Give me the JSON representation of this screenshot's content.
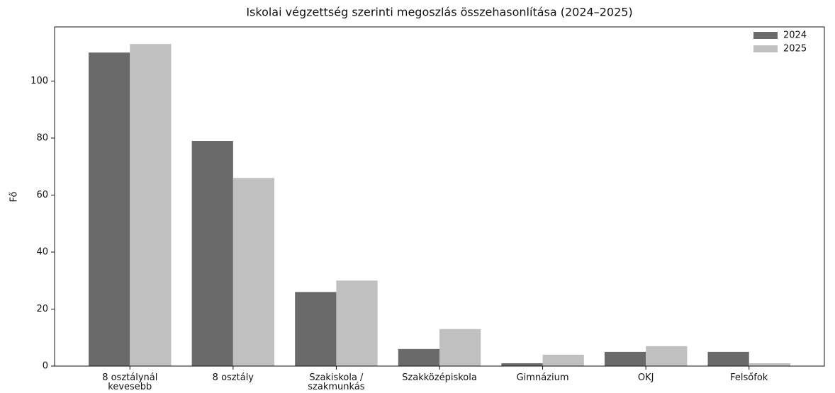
{
  "chart_data": {
    "type": "bar",
    "title": "Iskolai végzettség szerinti megoszlás összehasonlítása (2024–2025)",
    "y_label": "Fő",
    "categories": [
      "8 osztálynál\nkevesebb",
      "8 osztály",
      "Szakiskola /\nszakmunkás",
      "Szakközépiskola",
      "Gimnázium",
      "OKJ",
      "Felsőfok"
    ],
    "series": [
      {
        "name": "2024",
        "color": "#6a6a6a",
        "values": [
          110,
          79,
          26,
          6,
          1,
          5,
          5
        ]
      },
      {
        "name": "2025",
        "color": "#c0c0c0",
        "values": [
          113,
          66,
          30,
          13,
          4,
          7,
          1
        ]
      }
    ],
    "ylim": [
      0,
      119
    ],
    "yticks": [
      0,
      20,
      40,
      60,
      80,
      100
    ],
    "grid": false,
    "legend": "upper right"
  }
}
